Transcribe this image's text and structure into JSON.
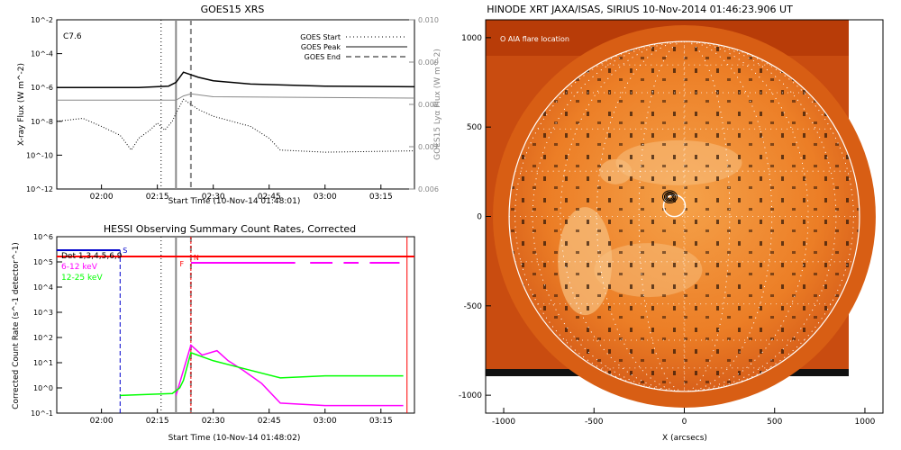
{
  "chart_data": [
    {
      "type": "line",
      "title": "GOES15 XRS",
      "flare_class": "C7.6",
      "xlabel": "Start Time (10-Nov-14 01:48:01)",
      "ylabel": "X-ray Flux (W m^-2)",
      "y2label": "GOES15 Lyα Flux (W m^-2)",
      "scale": "log",
      "xlim": [
        "01:48",
        "03:24"
      ],
      "ylim": [
        1e-12,
        0.01
      ],
      "y2lim": [
        0.006,
        0.01
      ],
      "x_ticks": [
        "02:00",
        "02:15",
        "02:30",
        "02:45",
        "03:00",
        "03:15"
      ],
      "y_ticks": [
        "10^-12",
        "10^-10",
        "10^-8",
        "10^-6",
        "10^-4",
        "10^-2"
      ],
      "y2_ticks": [
        "0.006",
        "0.007",
        "0.008",
        "0.009",
        "0.010"
      ],
      "legend": [
        "GOES Start",
        "GOES Peak",
        "GOES End"
      ],
      "markers": {
        "start": "02:16",
        "peak": "02:20",
        "end": "02:24"
      },
      "series": [
        {
          "name": "",
          "color": "#000000",
          "style": "solid",
          "x": [
            "01:48",
            "02:00",
            "02:10",
            "02:18",
            "02:20",
            "02:22",
            "02:26",
            "02:30",
            "02:40",
            "03:00",
            "03:24"
          ],
          "values": [
            1e-06,
            1e-06,
            1e-06,
            1.2e-06,
            2e-06,
            8e-06,
            4e-06,
            2.5e-06,
            1.6e-06,
            1.2e-06,
            1.1e-06
          ]
        },
        {
          "name": "",
          "color": "#000000",
          "style": "dotted",
          "x": [
            "01:48",
            "01:55",
            "02:00",
            "02:05",
            "02:08",
            "02:10",
            "02:13",
            "02:15",
            "02:17",
            "02:19",
            "02:20",
            "02:22",
            "02:26",
            "02:30",
            "02:40",
            "02:45",
            "02:48",
            "03:00",
            "03:24"
          ],
          "values": [
            1e-08,
            1.5e-08,
            5e-09,
            1.5e-09,
            2e-10,
            1e-09,
            3e-09,
            8e-09,
            3e-09,
            1e-08,
            3e-08,
            2e-07,
            5e-08,
            2e-08,
            5e-09,
            1e-09,
            2e-10,
            1.5e-10,
            1.8e-10
          ]
        },
        {
          "name": "",
          "color": "#888888",
          "style": "solid",
          "x": [
            "01:48",
            "02:20",
            "02:22",
            "02:24",
            "02:30",
            "03:24"
          ],
          "values": [
            0.0081,
            0.0081,
            0.0082,
            0.00825,
            0.00818,
            0.00815
          ]
        }
      ]
    },
    {
      "type": "line",
      "title": "HESSI Observing Summary Count Rates, Corrected",
      "xlabel": "Start Time (10-Nov-14 01:48:02)",
      "ylabel": "Corrected Count Rate (s^-1 detector^-1)",
      "scale": "log",
      "xlim": [
        "01:48",
        "03:24"
      ],
      "ylim": [
        0.1,
        1000000.0
      ],
      "x_ticks": [
        "02:00",
        "02:15",
        "02:30",
        "02:45",
        "03:00",
        "03:15"
      ],
      "y_ticks": [
        "10^-1",
        "10^0",
        "10^1",
        "10^2",
        "10^3",
        "10^4",
        "10^5",
        "10^6"
      ],
      "det_label": "Det 1,3,4,5,6,9",
      "flag_labels": {
        "S": "S",
        "F": "F",
        "N": "N"
      },
      "series": [
        {
          "name": "6-12 keV",
          "color": "#ff00ff",
          "x": [
            "02:20",
            "02:22",
            "02:24",
            "02:27",
            "02:31",
            "02:34",
            "02:38",
            "02:43",
            "02:48",
            "03:00",
            "03:21"
          ],
          "values": [
            0.5,
            5,
            50,
            20,
            30,
            12,
            5,
            1.5,
            0.25,
            0.2,
            0.2
          ]
        },
        {
          "name": "12-25 keV",
          "color": "#00ff00",
          "x": [
            "02:05",
            "02:19",
            "02:21",
            "02:22",
            "02:24",
            "02:30",
            "02:40",
            "02:48",
            "03:00",
            "03:21"
          ],
          "values": [
            0.5,
            0.6,
            1,
            2,
            25,
            12,
            5,
            2.5,
            3,
            3
          ]
        }
      ],
      "flag_color": "#ff0000",
      "s_color": "#0000cc",
      "magenta_dashes": [
        [
          "02:24",
          "02:52"
        ],
        [
          "02:56",
          "03:02"
        ],
        [
          "03:05",
          "03:09"
        ],
        [
          "03:12",
          "03:20"
        ]
      ]
    },
    {
      "type": "heatmap",
      "title": "HINODE XRT JAXA/ISAS, SIRIUS 10-Nov-2014 01:46:23.906 UT",
      "annotation": "O AIA flare location",
      "xlabel": "X (arcsecs)",
      "ylabel": "",
      "xlim": [
        -1100,
        1100
      ],
      "ylim": [
        -1100,
        1100
      ],
      "x_ticks": [
        "-1000",
        "-500",
        "0",
        "500",
        "1000"
      ],
      "y_ticks": [
        "-1000",
        "-500",
        "0",
        "500",
        "1000"
      ],
      "flare_location": {
        "x": -70,
        "y": 100
      },
      "solar_radius": 970,
      "colors": {
        "sun": "#e8741a",
        "background": "#b83c08",
        "limb": "#ffffff"
      }
    }
  ]
}
